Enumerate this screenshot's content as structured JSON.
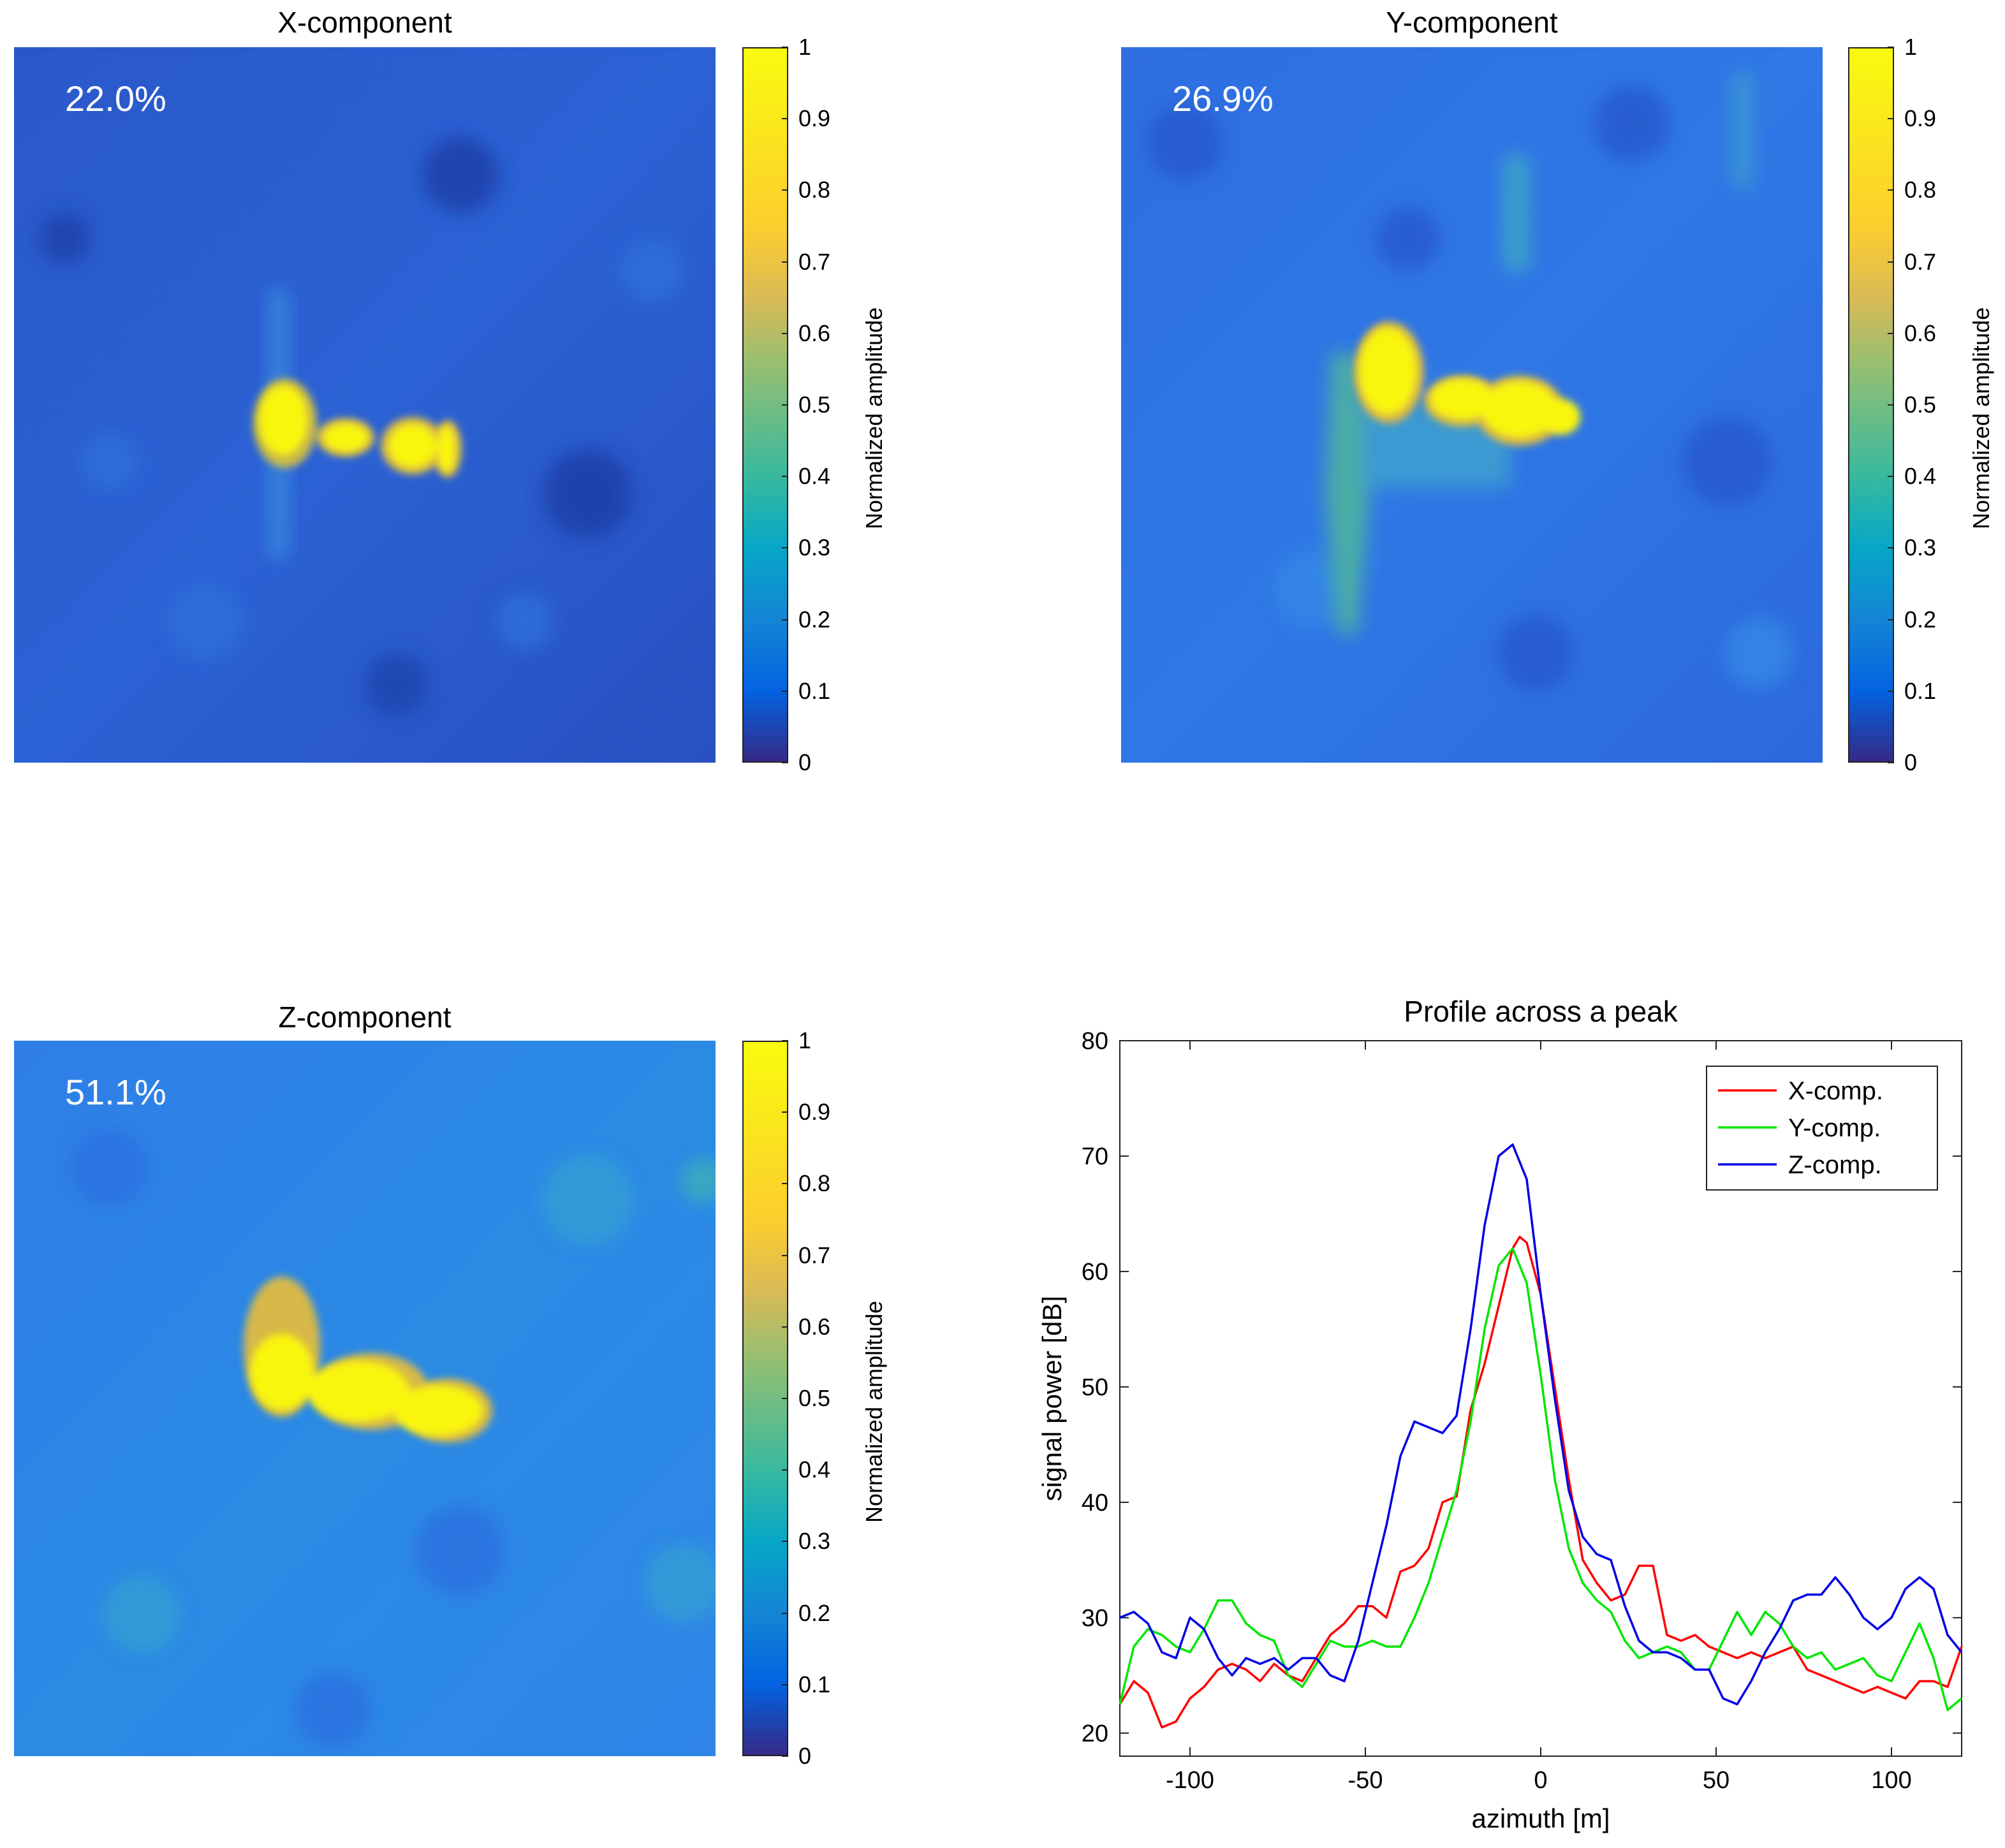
{
  "colorbar": {
    "label": "Normalized amplitude",
    "ticks": [
      "0",
      "0.1",
      "0.2",
      "0.3",
      "0.4",
      "0.5",
      "0.6",
      "0.7",
      "0.8",
      "0.9",
      "1"
    ]
  },
  "panels": {
    "x": {
      "title": "X-component",
      "percent": "22.0%"
    },
    "y": {
      "title": "Y-component",
      "percent": "26.9%"
    },
    "z": {
      "title": "Z-component",
      "percent": "51.1%"
    }
  },
  "chart_data": [
    {
      "type": "heatmap",
      "title": "X-component",
      "annotation": "22.0%",
      "colorbar_label": "Normalized amplitude",
      "clim": [
        0,
        1
      ]
    },
    {
      "type": "heatmap",
      "title": "Y-component",
      "annotation": "26.9%",
      "colorbar_label": "Normalized amplitude",
      "clim": [
        0,
        1
      ]
    },
    {
      "type": "heatmap",
      "title": "Z-component",
      "annotation": "51.1%",
      "colorbar_label": "Normalized amplitude",
      "clim": [
        0,
        1
      ]
    },
    {
      "type": "line",
      "title": "Profile across a peak",
      "xlabel": "azimuth [m]",
      "ylabel": "signal power [dB]",
      "xlim": [
        -120,
        120
      ],
      "ylim": [
        18,
        80
      ],
      "xticks": [
        -100,
        -50,
        0,
        50,
        100
      ],
      "yticks": [
        20,
        30,
        40,
        50,
        60,
        70,
        80
      ],
      "legend_position": "top-right",
      "series": [
        {
          "name": "X-comp.",
          "color": "#ff0000",
          "x": [
            -120,
            -116,
            -112,
            -108,
            -104,
            -100,
            -96,
            -92,
            -88,
            -84,
            -80,
            -76,
            -72,
            -68,
            -64,
            -60,
            -56,
            -52,
            -48,
            -44,
            -40,
            -36,
            -32,
            -28,
            -24,
            -20,
            -16,
            -12,
            -8,
            -6,
            -4,
            0,
            4,
            8,
            12,
            16,
            20,
            24,
            28,
            32,
            36,
            40,
            44,
            48,
            52,
            56,
            60,
            64,
            68,
            72,
            76,
            80,
            84,
            88,
            92,
            96,
            100,
            104,
            108,
            112,
            116,
            120
          ],
          "values": [
            22.5,
            24.5,
            23.5,
            20.5,
            21,
            23,
            24,
            25.5,
            26,
            25.5,
            24.5,
            26,
            25,
            24.5,
            26.5,
            28.5,
            29.5,
            31,
            31,
            30,
            34,
            34.5,
            36,
            40,
            40.5,
            48,
            52,
            57,
            62,
            63,
            62.5,
            58,
            50,
            42,
            35,
            33,
            31.5,
            32,
            34.5,
            34.5,
            28.5,
            28,
            28.5,
            27.5,
            27,
            26.5,
            27,
            26.5,
            27,
            27.5,
            25.5,
            25,
            24.5,
            24,
            23.5,
            24,
            23.5,
            23,
            24.5,
            24.5,
            24,
            27.5
          ]
        },
        {
          "name": "Y-comp.",
          "color": "#00e600",
          "x": [
            -120,
            -116,
            -112,
            -108,
            -104,
            -100,
            -96,
            -92,
            -88,
            -84,
            -80,
            -76,
            -72,
            -68,
            -64,
            -60,
            -56,
            -52,
            -48,
            -44,
            -40,
            -36,
            -32,
            -28,
            -24,
            -20,
            -16,
            -12,
            -8,
            -4,
            0,
            4,
            8,
            12,
            16,
            20,
            24,
            28,
            32,
            36,
            40,
            44,
            48,
            52,
            56,
            60,
            64,
            68,
            72,
            76,
            80,
            84,
            88,
            92,
            96,
            100,
            104,
            108,
            112,
            116,
            120
          ],
          "values": [
            22.5,
            27.5,
            29,
            28.5,
            27.5,
            27,
            29,
            31.5,
            31.5,
            29.5,
            28.5,
            28,
            25,
            24,
            26,
            28,
            27.5,
            27.5,
            28,
            27.5,
            27.5,
            30,
            33,
            37,
            41,
            47,
            55,
            60.5,
            62,
            59,
            51,
            42,
            36,
            33,
            31.5,
            30.5,
            28,
            26.5,
            27,
            27.5,
            27,
            25.5,
            25.5,
            28,
            30.5,
            28.5,
            30.5,
            29.5,
            27.5,
            26.5,
            27,
            25.5,
            26,
            26.5,
            25,
            24.5,
            27,
            29.5,
            26.5,
            22,
            23
          ]
        },
        {
          "name": "Z-comp.",
          "color": "#0000e6",
          "x": [
            -120,
            -116,
            -112,
            -108,
            -104,
            -100,
            -96,
            -92,
            -88,
            -84,
            -80,
            -76,
            -72,
            -68,
            -64,
            -60,
            -56,
            -52,
            -48,
            -44,
            -40,
            -36,
            -32,
            -28,
            -24,
            -20,
            -16,
            -12,
            -8,
            -4,
            0,
            4,
            8,
            12,
            16,
            20,
            24,
            28,
            32,
            36,
            40,
            44,
            48,
            52,
            56,
            60,
            64,
            68,
            72,
            76,
            80,
            84,
            88,
            92,
            96,
            100,
            104,
            108,
            112,
            116,
            120
          ],
          "values": [
            30,
            30.5,
            29.5,
            27,
            26.5,
            30,
            29,
            26.5,
            25,
            26.5,
            26,
            26.5,
            25.5,
            26.5,
            26.5,
            25,
            24.5,
            28,
            33,
            38,
            44,
            47,
            46.5,
            46,
            47.5,
            55,
            64,
            70,
            71,
            68,
            58,
            49,
            41,
            37,
            35.5,
            35,
            31,
            28,
            27,
            27,
            26.5,
            25.5,
            25.5,
            23,
            22.5,
            24.5,
            27,
            29,
            31.5,
            32,
            32,
            33.5,
            32,
            30,
            29,
            30,
            32.5,
            33.5,
            32.5,
            28.5,
            27
          ]
        }
      ]
    }
  ]
}
